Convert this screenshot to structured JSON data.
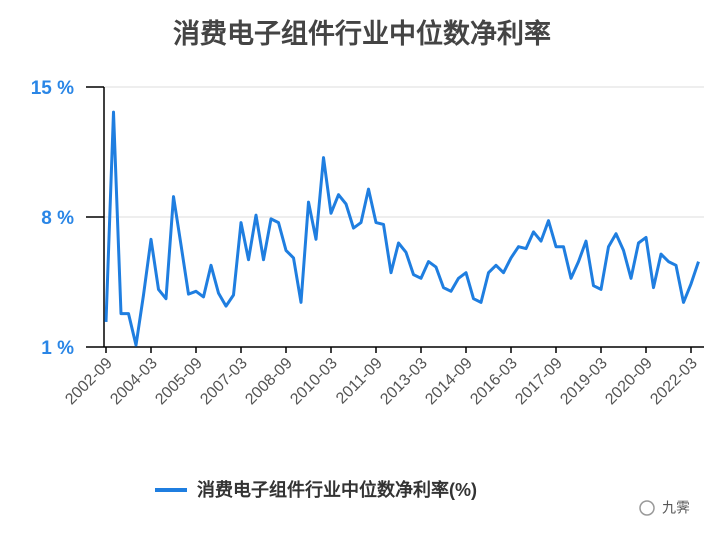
{
  "chart_data": {
    "type": "line",
    "title": "消费电子组件行业中位数净利率",
    "categories": [
      "2002-09",
      null,
      null,
      null,
      null,
      null,
      "2004-03",
      null,
      null,
      null,
      null,
      null,
      "2005-09",
      null,
      null,
      null,
      null,
      null,
      "2007-03",
      null,
      null,
      null,
      null,
      null,
      "2008-09",
      null,
      null,
      null,
      null,
      null,
      "2010-03",
      null,
      null,
      null,
      null,
      null,
      "2011-09",
      null,
      null,
      null,
      null,
      null,
      "2013-03",
      null,
      null,
      null,
      null,
      null,
      "2014-09",
      null,
      null,
      null,
      null,
      null,
      "2016-03",
      null,
      null,
      null,
      null,
      null,
      "2017-09",
      null,
      null,
      null,
      null,
      null,
      "2019-03",
      null,
      null,
      null,
      null,
      null,
      "2020-09",
      null,
      null,
      null,
      null,
      null,
      "2022-03",
      null
    ],
    "series": [
      {
        "name": "消费电子组件行业中位数净利率(%)",
        "color": "#1f7ee0",
        "values": [
          2.35,
          13.65,
          2.8,
          2.8,
          1.1,
          3.8,
          6.8,
          4.1,
          3.6,
          9.1,
          6.5,
          3.85,
          4.0,
          3.7,
          5.4,
          3.9,
          3.2,
          3.8,
          7.7,
          5.7,
          8.1,
          5.7,
          7.9,
          7.7,
          6.2,
          5.8,
          3.4,
          8.8,
          6.8,
          11.2,
          8.2,
          9.2,
          8.7,
          7.4,
          7.7,
          9.5,
          7.7,
          7.6,
          5.0,
          6.6,
          6.1,
          4.9,
          4.7,
          5.6,
          5.3,
          4.2,
          4.0,
          4.7,
          5.0,
          3.6,
          3.4,
          5.0,
          5.4,
          5.0,
          5.8,
          6.4,
          6.3,
          7.2,
          6.7,
          7.8,
          6.4,
          6.4,
          4.7,
          5.6,
          6.7,
          4.3,
          4.1,
          6.4,
          7.1,
          6.2,
          4.7,
          6.6,
          6.9,
          4.2,
          6.0,
          5.6,
          5.4,
          3.4,
          4.4,
          5.6
        ]
      }
    ],
    "ylim": [
      1,
      15
    ],
    "yticks": [
      {
        "value": 1,
        "label": "1 %"
      },
      {
        "value": 8,
        "label": "8 %"
      },
      {
        "value": 15,
        "label": "15 %"
      }
    ],
    "grid": true,
    "legend": "bottom",
    "watermark": "九霁"
  }
}
